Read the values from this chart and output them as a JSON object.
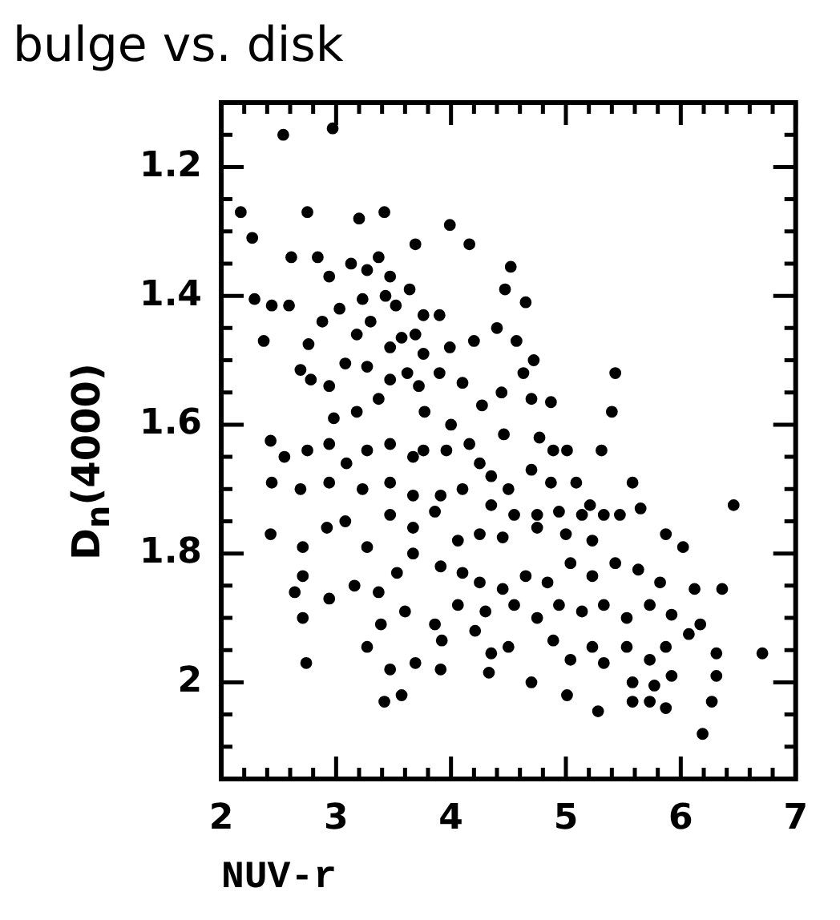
{
  "chart_data": {
    "type": "scatter",
    "title": "bulge vs. disk",
    "xlabel": "NUV-r",
    "ylabel": "D$_{n}$(4000)",
    "xlim": [
      2,
      7
    ],
    "ylim": [
      2.15,
      1.1
    ],
    "xticks": [
      2,
      {
        "value": 2.2,
        "label": null
      },
      {
        "value": 2.4,
        "label": null
      },
      {
        "value": 2.6,
        "label": null
      },
      {
        "value": 2.8,
        "label": null
      },
      3,
      {
        "value": 3.2,
        "label": null
      },
      {
        "value": 3.4,
        "label": null
      },
      {
        "value": 3.6,
        "label": null
      },
      {
        "value": 3.8,
        "label": null
      },
      4,
      {
        "value": 4.2,
        "label": null
      },
      {
        "value": 4.4,
        "label": null
      },
      {
        "value": 4.6,
        "label": null
      },
      {
        "value": 4.8,
        "label": null
      },
      5,
      {
        "value": 5.2,
        "label": null
      },
      {
        "value": 5.4,
        "label": null
      },
      {
        "value": 5.6,
        "label": null
      },
      {
        "value": 5.8,
        "label": null
      },
      6,
      {
        "value": 6.2,
        "label": null
      },
      {
        "value": 6.4,
        "label": null
      },
      {
        "value": 6.6,
        "label": null
      },
      {
        "value": 6.8,
        "label": null
      },
      7
    ],
    "yticks": [
      {
        "value": 1.1,
        "label": null
      },
      {
        "value": 1.15,
        "label": null
      },
      1.2,
      {
        "value": 1.25,
        "label": null
      },
      {
        "value": 1.3,
        "label": null
      },
      {
        "value": 1.35,
        "label": null
      },
      1.4,
      {
        "value": 1.45,
        "label": null
      },
      {
        "value": 1.5,
        "label": null
      },
      {
        "value": 1.55,
        "label": null
      },
      1.6,
      {
        "value": 1.65,
        "label": null
      },
      {
        "value": 1.7,
        "label": null
      },
      {
        "value": 1.75,
        "label": null
      },
      1.8,
      {
        "value": 1.85,
        "label": null
      },
      {
        "value": 1.9,
        "label": null
      },
      {
        "value": 1.95,
        "label": null
      },
      2,
      {
        "value": 2.05,
        "label": null
      },
      {
        "value": 2.1,
        "label": null
      },
      {
        "value": 2.15,
        "label": null
      }
    ],
    "grid": false,
    "legend": false,
    "marker": "circle",
    "series": [
      {
        "color": "#000000",
        "x": [
          2.54,
          2.97,
          2.17,
          2.27,
          2.75,
          3.2,
          3.42,
          3.99,
          4.16,
          3.69,
          4.52,
          4.47,
          4.65,
          2.61,
          2.84,
          2.94,
          3.13,
          3.27,
          3.37,
          3.47,
          3.64,
          2.29,
          2.44,
          2.37,
          2.59,
          2.88,
          3.03,
          3.23,
          3.43,
          3.52,
          3.76,
          3.9,
          3.18,
          3.3,
          2.76,
          3.57,
          3.69,
          3.47,
          3.76,
          3.99,
          4.2,
          4.4,
          4.57,
          4.72,
          5.43,
          5.4,
          2.69,
          2.78,
          2.94,
          3.08,
          3.27,
          3.47,
          3.62,
          3.72,
          3.9,
          4.1,
          4.27,
          4.44,
          4.63,
          4.7,
          4.87,
          2.98,
          3.18,
          3.37,
          3.77,
          4.0,
          4.46,
          4.77,
          4.89,
          5.01,
          5.31,
          2.43,
          2.55,
          2.75,
          2.94,
          3.09,
          3.27,
          3.47,
          3.67,
          3.76,
          3.96,
          4.16,
          4.25,
          4.35,
          4.5,
          4.7,
          4.87,
          5.09,
          5.21,
          5.58,
          6.46,
          2.44,
          2.69,
          2.94,
          3.23,
          3.47,
          3.67,
          3.91,
          4.1,
          4.35,
          4.55,
          4.75,
          4.94,
          5.14,
          5.33,
          5.47,
          5.65,
          2.43,
          2.71,
          2.92,
          3.08,
          3.27,
          3.47,
          3.67,
          3.86,
          4.06,
          4.25,
          4.45,
          4.75,
          5.0,
          5.23,
          5.87,
          6.02,
          2.71,
          2.64,
          2.94,
          3.16,
          3.37,
          3.53,
          3.67,
          3.91,
          4.1,
          4.25,
          4.45,
          4.65,
          4.84,
          5.04,
          5.23,
          5.43,
          5.63,
          5.82,
          6.12,
          6.36,
          2.71,
          3.6,
          3.86,
          4.06,
          4.3,
          4.55,
          4.75,
          4.94,
          5.14,
          5.33,
          5.53,
          5.73,
          5.92,
          6.17,
          3.27,
          3.39,
          3.92,
          4.21,
          4.35,
          4.5,
          4.89,
          5.04,
          5.23,
          5.33,
          5.53,
          5.73,
          5.87,
          6.07,
          6.31,
          6.71,
          2.74,
          3.47,
          3.69,
          3.91,
          4.33,
          4.7,
          5.58,
          5.77,
          5.92,
          6.31,
          3.42,
          3.57,
          5.01,
          5.28,
          5.58,
          5.73,
          5.87,
          6.27,
          6.19
        ],
        "values": [
          1.15,
          1.14,
          1.27,
          1.31,
          1.27,
          1.28,
          1.27,
          1.29,
          1.32,
          1.32,
          1.355,
          1.39,
          1.41,
          1.34,
          1.34,
          1.37,
          1.35,
          1.36,
          1.34,
          1.37,
          1.39,
          1.405,
          1.415,
          1.47,
          1.415,
          1.44,
          1.42,
          1.405,
          1.4,
          1.415,
          1.43,
          1.43,
          1.46,
          1.44,
          1.475,
          1.465,
          1.46,
          1.48,
          1.49,
          1.48,
          1.47,
          1.45,
          1.47,
          1.5,
          1.52,
          1.58,
          1.515,
          1.53,
          1.54,
          1.505,
          1.51,
          1.53,
          1.52,
          1.54,
          1.52,
          1.535,
          1.57,
          1.55,
          1.52,
          1.56,
          1.565,
          1.59,
          1.58,
          1.56,
          1.58,
          1.6,
          1.615,
          1.62,
          1.64,
          1.64,
          1.64,
          1.625,
          1.65,
          1.64,
          1.63,
          1.66,
          1.64,
          1.63,
          1.65,
          1.64,
          1.64,
          1.63,
          1.66,
          1.68,
          1.7,
          1.67,
          1.69,
          1.69,
          1.725,
          1.69,
          1.725,
          1.69,
          1.7,
          1.69,
          1.7,
          1.69,
          1.71,
          1.71,
          1.7,
          1.725,
          1.74,
          1.74,
          1.735,
          1.74,
          1.74,
          1.74,
          1.73,
          1.77,
          1.79,
          1.76,
          1.75,
          1.79,
          1.74,
          1.76,
          1.735,
          1.78,
          1.77,
          1.775,
          1.76,
          1.77,
          1.78,
          1.77,
          1.79,
          1.835,
          1.86,
          1.87,
          1.85,
          1.86,
          1.83,
          1.8,
          1.82,
          1.83,
          1.845,
          1.855,
          1.835,
          1.845,
          1.815,
          1.835,
          1.815,
          1.825,
          1.845,
          1.855,
          1.855,
          1.9,
          1.89,
          1.91,
          1.88,
          1.89,
          1.88,
          1.9,
          1.88,
          1.89,
          1.88,
          1.9,
          1.88,
          1.895,
          1.91,
          1.945,
          1.91,
          1.935,
          1.92,
          1.955,
          1.945,
          1.935,
          1.965,
          1.945,
          1.97,
          1.945,
          1.965,
          1.945,
          1.925,
          1.955,
          1.955,
          1.97,
          1.98,
          1.97,
          1.98,
          1.985,
          2.0,
          2.0,
          2.005,
          1.99,
          1.99,
          2.03,
          2.02,
          2.02,
          2.045,
          2.03,
          2.03,
          2.04,
          2.03,
          2.08
        ]
      }
    ]
  }
}
